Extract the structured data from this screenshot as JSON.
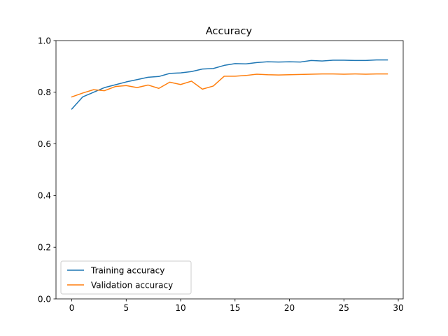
{
  "chart_data": {
    "type": "line",
    "title": "Accuracy",
    "xlabel": "",
    "ylabel": "",
    "xlim": [
      -1.45,
      30.45
    ],
    "ylim": [
      0.0,
      1.0
    ],
    "xticks": [
      0,
      5,
      10,
      15,
      20,
      25,
      30
    ],
    "yticks": [
      0.0,
      0.2,
      0.4,
      0.6,
      0.8,
      1.0
    ],
    "grid": false,
    "legend_position": "lower-left",
    "x": [
      0,
      1,
      2,
      3,
      4,
      5,
      6,
      7,
      8,
      9,
      10,
      11,
      12,
      13,
      14,
      15,
      16,
      17,
      18,
      19,
      20,
      21,
      22,
      23,
      24,
      25,
      26,
      27,
      28,
      29
    ],
    "series": [
      {
        "name": "Training accuracy",
        "color": "#1f77b4",
        "values": [
          0.735,
          0.782,
          0.8,
          0.818,
          0.829,
          0.84,
          0.849,
          0.858,
          0.861,
          0.873,
          0.875,
          0.88,
          0.89,
          0.892,
          0.904,
          0.911,
          0.91,
          0.915,
          0.918,
          0.917,
          0.918,
          0.917,
          0.923,
          0.921,
          0.924,
          0.924,
          0.923,
          0.923,
          0.925,
          0.925
        ]
      },
      {
        "name": "Validation accuracy",
        "color": "#ff7f0e",
        "values": [
          0.782,
          0.797,
          0.81,
          0.806,
          0.822,
          0.826,
          0.818,
          0.828,
          0.815,
          0.839,
          0.83,
          0.843,
          0.812,
          0.824,
          0.862,
          0.862,
          0.865,
          0.87,
          0.868,
          0.867,
          0.868,
          0.869,
          0.87,
          0.871,
          0.871,
          0.87,
          0.871,
          0.87,
          0.871,
          0.871
        ]
      }
    ]
  }
}
